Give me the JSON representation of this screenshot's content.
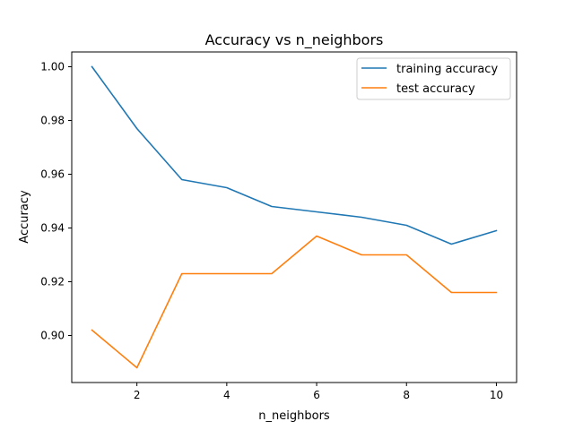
{
  "chart_data": {
    "type": "line",
    "title": "Accuracy vs n_neighbors",
    "xlabel": "n_neighbors",
    "ylabel": "Accuracy",
    "x": [
      1,
      2,
      3,
      4,
      5,
      6,
      7,
      8,
      9,
      10
    ],
    "xlim": [
      0.55,
      10.45
    ],
    "ylim": [
      0.8825,
      1.0055
    ],
    "xticks": [
      2,
      4,
      6,
      8,
      10
    ],
    "xtick_labels": [
      "2",
      "4",
      "6",
      "8",
      "10"
    ],
    "yticks": [
      0.9,
      0.92,
      0.94,
      0.96,
      0.98,
      1.0
    ],
    "ytick_labels": [
      "0.90",
      "0.92",
      "0.94",
      "0.96",
      "0.98",
      "1.00"
    ],
    "grid": false,
    "legend_position": "top-right",
    "series": [
      {
        "name": "training accuracy",
        "color": "#1f77b4",
        "values": [
          1.0,
          0.977,
          0.958,
          0.955,
          0.948,
          0.946,
          0.944,
          0.941,
          0.934,
          0.939
        ]
      },
      {
        "name": "test accuracy",
        "color": "#ff7f0e",
        "values": [
          0.902,
          0.888,
          0.923,
          0.923,
          0.923,
          0.937,
          0.93,
          0.93,
          0.916,
          0.916
        ]
      }
    ]
  }
}
